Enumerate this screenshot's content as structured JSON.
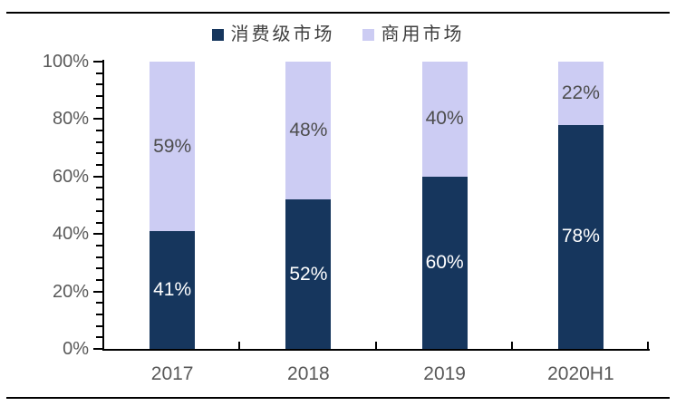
{
  "chart_data": {
    "type": "bar",
    "subtype": "stacked-100-percent",
    "title": "",
    "xlabel": "",
    "ylabel": "",
    "categories": [
      "2017",
      "2018",
      "2019",
      "2020H1"
    ],
    "series": [
      {
        "name": "消费级市场",
        "color": "#16365D",
        "label_color": "#FFFFFF",
        "values": [
          41,
          52,
          60,
          78
        ],
        "labels": [
          "41%",
          "52%",
          "60%",
          "78%"
        ]
      },
      {
        "name": "商用市场",
        "color": "#CCCCF3",
        "label_color": "#4D4D4D",
        "values": [
          59,
          48,
          40,
          22
        ],
        "labels": [
          "59%",
          "48%",
          "40%",
          "22%"
        ]
      }
    ],
    "y_axis": {
      "min": 0,
      "max": 100,
      "major_step": 20,
      "minor_step": 4,
      "tick_labels": [
        "0%",
        "20%",
        "40%",
        "60%",
        "80%",
        "100%"
      ]
    },
    "legend_position": "top",
    "grid": false,
    "axis_color": "#000000",
    "tick_label_color": "#595959"
  }
}
